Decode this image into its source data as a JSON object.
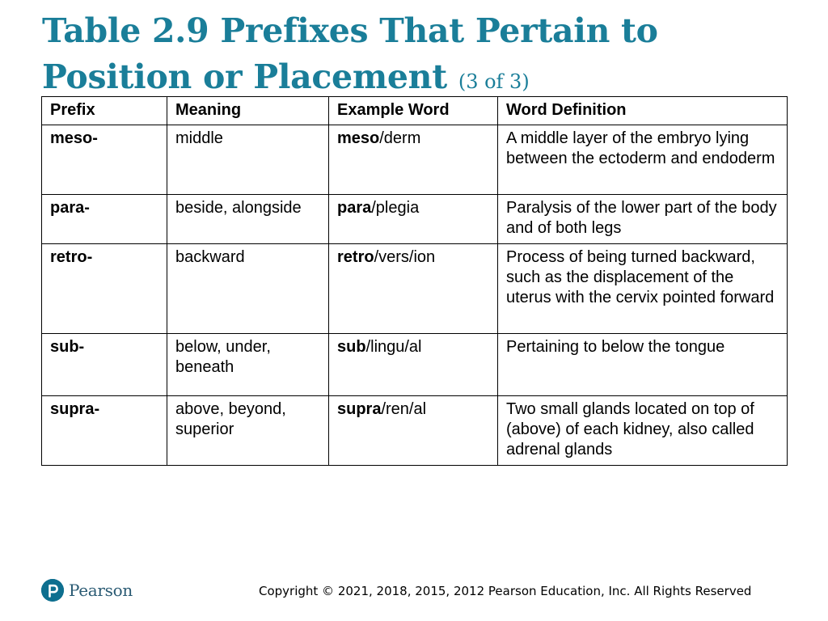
{
  "title": {
    "main": "Table 2.9 Prefixes That Pertain to Position or Placement",
    "part": "(3 of 3)"
  },
  "table": {
    "headers": [
      "Prefix",
      "Meaning",
      "Example Word",
      "Word Definition"
    ],
    "rows": [
      {
        "prefix": "meso-",
        "meaning": "middle",
        "example_bold": "meso",
        "example_rest": "/derm",
        "definition": "A middle layer of the embryo lying between the ectoderm and endoderm"
      },
      {
        "prefix": "para-",
        "meaning": "beside, alongside",
        "example_bold": "para",
        "example_rest": "/plegia",
        "definition": "Paralysis of the lower part of the body and of both legs"
      },
      {
        "prefix": "retro-",
        "meaning": "backward",
        "example_bold": "retro",
        "example_rest": "/vers/ion",
        "definition": "Process of being turned backward, such as the displacement of the uterus with the cervix pointed forward"
      },
      {
        "prefix": "sub-",
        "meaning": "below, under, beneath",
        "example_bold": "sub",
        "example_rest": "/lingu/al",
        "definition": "Pertaining to below the tongue"
      },
      {
        "prefix": "supra-",
        "meaning": "above, beyond, superior",
        "example_bold": "supra",
        "example_rest": "/ren/al",
        "definition": "Two small glands located on top of (above) of each kidney, also called adrenal glands"
      }
    ]
  },
  "footer": {
    "logo_text": "Pearson",
    "copyright": "Copyright © 2021, 2018, 2015, 2012 Pearson Education, Inc. All Rights Reserved"
  },
  "colors": {
    "title": "#1a7e99",
    "logo": "#0e6f8f"
  }
}
